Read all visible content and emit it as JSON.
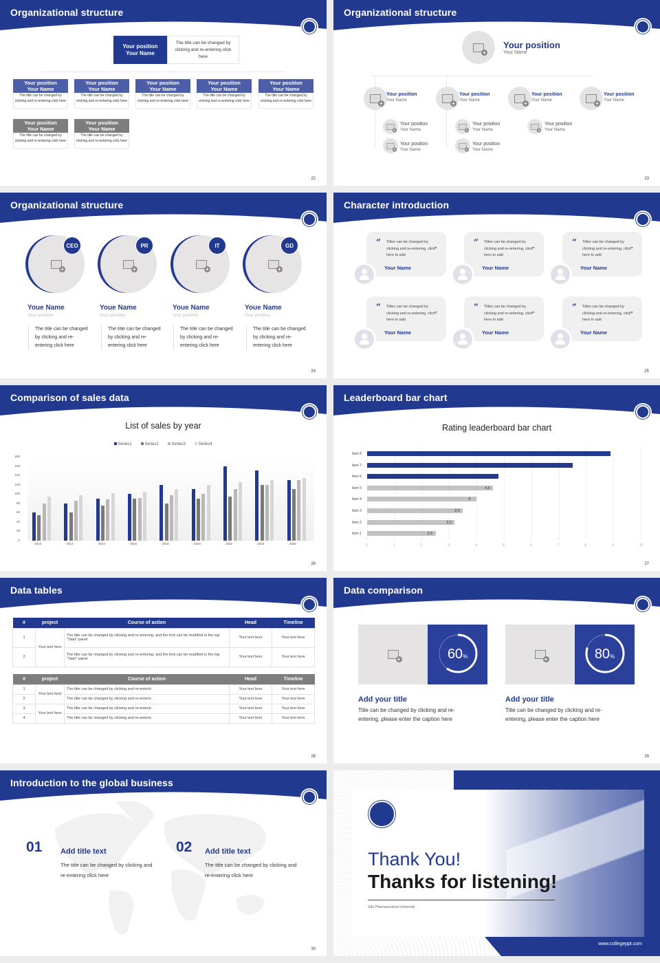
{
  "theme": {
    "primary": "#213a8f",
    "gray": "#7d7d7d",
    "light_gray": "#e5e3e3"
  },
  "slides": {
    "s22": {
      "title": "Organizational structure",
      "page": "22",
      "top": {
        "position": "Your position",
        "name": "Your Name",
        "desc": "The title can be changed by clicking and re-entering click here"
      },
      "row1": [
        {
          "position": "Your position",
          "name": "Your Name",
          "desc": "The title can be changed by clicking and re-entering click here"
        },
        {
          "position": "Your position",
          "name": "Your Name",
          "desc": "The title can be changed by clicking and re-entering click here"
        },
        {
          "position": "Your position",
          "name": "Your Name",
          "desc": "The title can be changed by clicking and re-entering click here"
        },
        {
          "position": "Your position",
          "name": "Your Name",
          "desc": "The title can be changed by clicking and re-entering click here"
        },
        {
          "position": "Your position",
          "name": "Your Name",
          "desc": "The title can be changed by clicking and re-entering click here"
        }
      ],
      "row2": [
        {
          "position": "Your position",
          "name": "Your Name",
          "desc": "The title can be changed by clicking and re-entering click here"
        },
        {
          "position": "Your position",
          "name": "Your Name",
          "desc": "The title can be changed by clicking and re-entering click here"
        }
      ]
    },
    "s23": {
      "title": "Organizational structure",
      "page": "23",
      "top": {
        "position": "Your position",
        "name": "Your Name"
      },
      "level2": [
        {
          "position": "Your position",
          "name": "Your Name"
        },
        {
          "position": "Your position",
          "name": "Your Name"
        },
        {
          "position": "Your position",
          "name": "Your Name"
        },
        {
          "position": "Your position",
          "name": "Your Name"
        }
      ],
      "level3": [
        {
          "position": "Your position",
          "name": "Your Name"
        },
        {
          "position": "Your position",
          "name": "Your Name"
        },
        {
          "position": "Your position",
          "name": "Your Name"
        },
        {
          "position": "Your position",
          "name": "Your Name"
        },
        {
          "position": "Your position",
          "name": "Your Name"
        }
      ]
    },
    "s24": {
      "title": "Organizational structure",
      "page": "24",
      "people": [
        {
          "badge": "CEO",
          "name": "Youe Name",
          "position": "Your position",
          "desc": "The title can be changed by clicking and re-entering click here"
        },
        {
          "badge": "PR",
          "name": "Youe Name",
          "position": "Your position",
          "desc": "The title can be changed by clicking and re-entering click here"
        },
        {
          "badge": "IT",
          "name": "Youe Name",
          "position": "Your position",
          "desc": "The title can be changed by clicking and re-entering click here"
        },
        {
          "badge": "GD",
          "name": "Youe Name",
          "position": "Your position",
          "desc": "The title can be changed by clicking and re-entering click here"
        }
      ]
    },
    "s25": {
      "title": "Character introduction",
      "page": "25",
      "cards": [
        {
          "quote": "Titles can be changed by clicking and re-entering, click here to add",
          "name": "Your Name"
        },
        {
          "quote": "Titles can be changed by clicking and re-entering, click here to add",
          "name": "Your Name"
        },
        {
          "quote": "Titles can be changed by clicking and re-entering, click here to add",
          "name": "Your Name"
        },
        {
          "quote": "Titles can be changed by clicking and re-entering, click here to add",
          "name": "Your Name"
        },
        {
          "quote": "Titles can be changed by clicking and re-entering, click here to add",
          "name": "Your Name"
        },
        {
          "quote": "Titles can be changed by clicking and re-entering, click here to add",
          "name": "Your Name"
        }
      ],
      "open_quote": "“",
      "close_quote": "”"
    },
    "s26": {
      "title": "Comparison of sales data",
      "page": "26"
    },
    "s27": {
      "title": "Leaderboard bar chart",
      "page": "27"
    },
    "s28": {
      "title": "Data tables",
      "page": "28",
      "headers": [
        "#",
        "project",
        "Course of action",
        "Head",
        "Timeline"
      ],
      "table1": {
        "project": "Your text here",
        "rows": [
          {
            "n": "1",
            "action": "The title can be changed by clicking and re-entering, and the font can be modified in the top \"Start\" panel",
            "head": "Your text here",
            "timeline": "Your text here"
          },
          {
            "n": "2",
            "action": "The title can be changed by clicking and re-entering, and the font can be modified in the top \"Start\" panel",
            "head": "Your text here",
            "timeline": "Your text here"
          }
        ]
      },
      "table2": {
        "projects": [
          "Your text here",
          "Your text here"
        ],
        "rows": [
          {
            "n": "1",
            "action": "The title can be changed by clicking and re-enterin",
            "head": "Your text here",
            "timeline": "Your text here"
          },
          {
            "n": "2",
            "action": "The title can be changed by clicking and re-enterin",
            "head": "Your text here",
            "timeline": "Your text here"
          },
          {
            "n": "3",
            "action": "The title can be changed by clicking and re-enterin",
            "head": "Your text here",
            "timeline": "Your text here"
          },
          {
            "n": "4",
            "action": "The title can be changed by clicking and re-enterin",
            "head": "Your text here",
            "timeline": "Your text here"
          }
        ]
      }
    },
    "s29": {
      "title": "Data comparison",
      "page": "29",
      "items": [
        {
          "value": "60",
          "unit": "%",
          "heading": "Add your title",
          "desc": "Title can be changed by clicking and re-entering, please enter the caption here"
        },
        {
          "value": "80",
          "unit": "%",
          "heading": "Add your title",
          "desc": "Title can be changed by clicking and re-entering, please enter the caption here"
        }
      ]
    },
    "s30": {
      "title": "Introduction to the global business",
      "page": "30",
      "items": [
        {
          "num": "01",
          "heading": "Add title text",
          "desc": "The title can be changed by clicking and re-entering click here"
        },
        {
          "num": "02",
          "heading": "Add title text",
          "desc": "The title can be changed by clicking and re-entering click here"
        }
      ]
    },
    "s31": {
      "thank_you": "Thank You!",
      "thanks_listening": "Thanks for listening!",
      "university": "Gifu Pharmaceutical University",
      "url": "www.collegeppt.com"
    }
  },
  "chart_data": [
    {
      "type": "bar",
      "title": "List of sales by year",
      "categories": [
        "2010",
        "2012",
        "2014",
        "2016",
        "2018",
        "2020",
        "2022",
        "2024",
        "2026"
      ],
      "series": [
        {
          "name": "Series1",
          "color": "#213a8f",
          "values": [
            60,
            80,
            90,
            100,
            120,
            110,
            160,
            150,
            130
          ]
        },
        {
          "name": "Series2",
          "color": "#7a7a7a",
          "values": [
            55,
            60,
            75,
            90,
            80,
            90,
            95,
            120,
            110
          ]
        },
        {
          "name": "Series3",
          "color": "#b8b8b8",
          "values": [
            80,
            85,
            88,
            92,
            98,
            100,
            110,
            120,
            130
          ]
        },
        {
          "name": "Series4",
          "color": "#d6d6d6",
          "values": [
            95,
            98,
            102,
            105,
            110,
            120,
            126,
            130,
            135
          ]
        }
      ],
      "xlabel": "",
      "ylabel": "",
      "yticks": [
        "0",
        "20",
        "40",
        "60",
        "80",
        "100",
        "120",
        "140",
        "160",
        "180"
      ],
      "ylim": [
        0,
        180
      ],
      "legend_position": "top",
      "grid": false
    },
    {
      "type": "bar",
      "orientation": "horizontal",
      "title": "Rating leaderboard bar chart",
      "categories": [
        "Item 8",
        "Item 7",
        "Item 6",
        "Item 5",
        "Item 4",
        "Item 3",
        "Item 2",
        "Item 1"
      ],
      "values": [
        8.9,
        7.5,
        4.8,
        4.6,
        4,
        3.5,
        3.2,
        2.5
      ],
      "data_labels": [
        "",
        "",
        "",
        "4.6",
        "4",
        "3.5",
        "3.2",
        "2.5"
      ],
      "highlight": [
        "Item 8",
        "Item 7",
        "Item 6"
      ],
      "xticks": [
        "0",
        "1",
        "2",
        "3",
        "4",
        "5",
        "6",
        "7",
        "8",
        "9",
        "10"
      ],
      "xlim": [
        0,
        10
      ],
      "grid": true
    }
  ]
}
